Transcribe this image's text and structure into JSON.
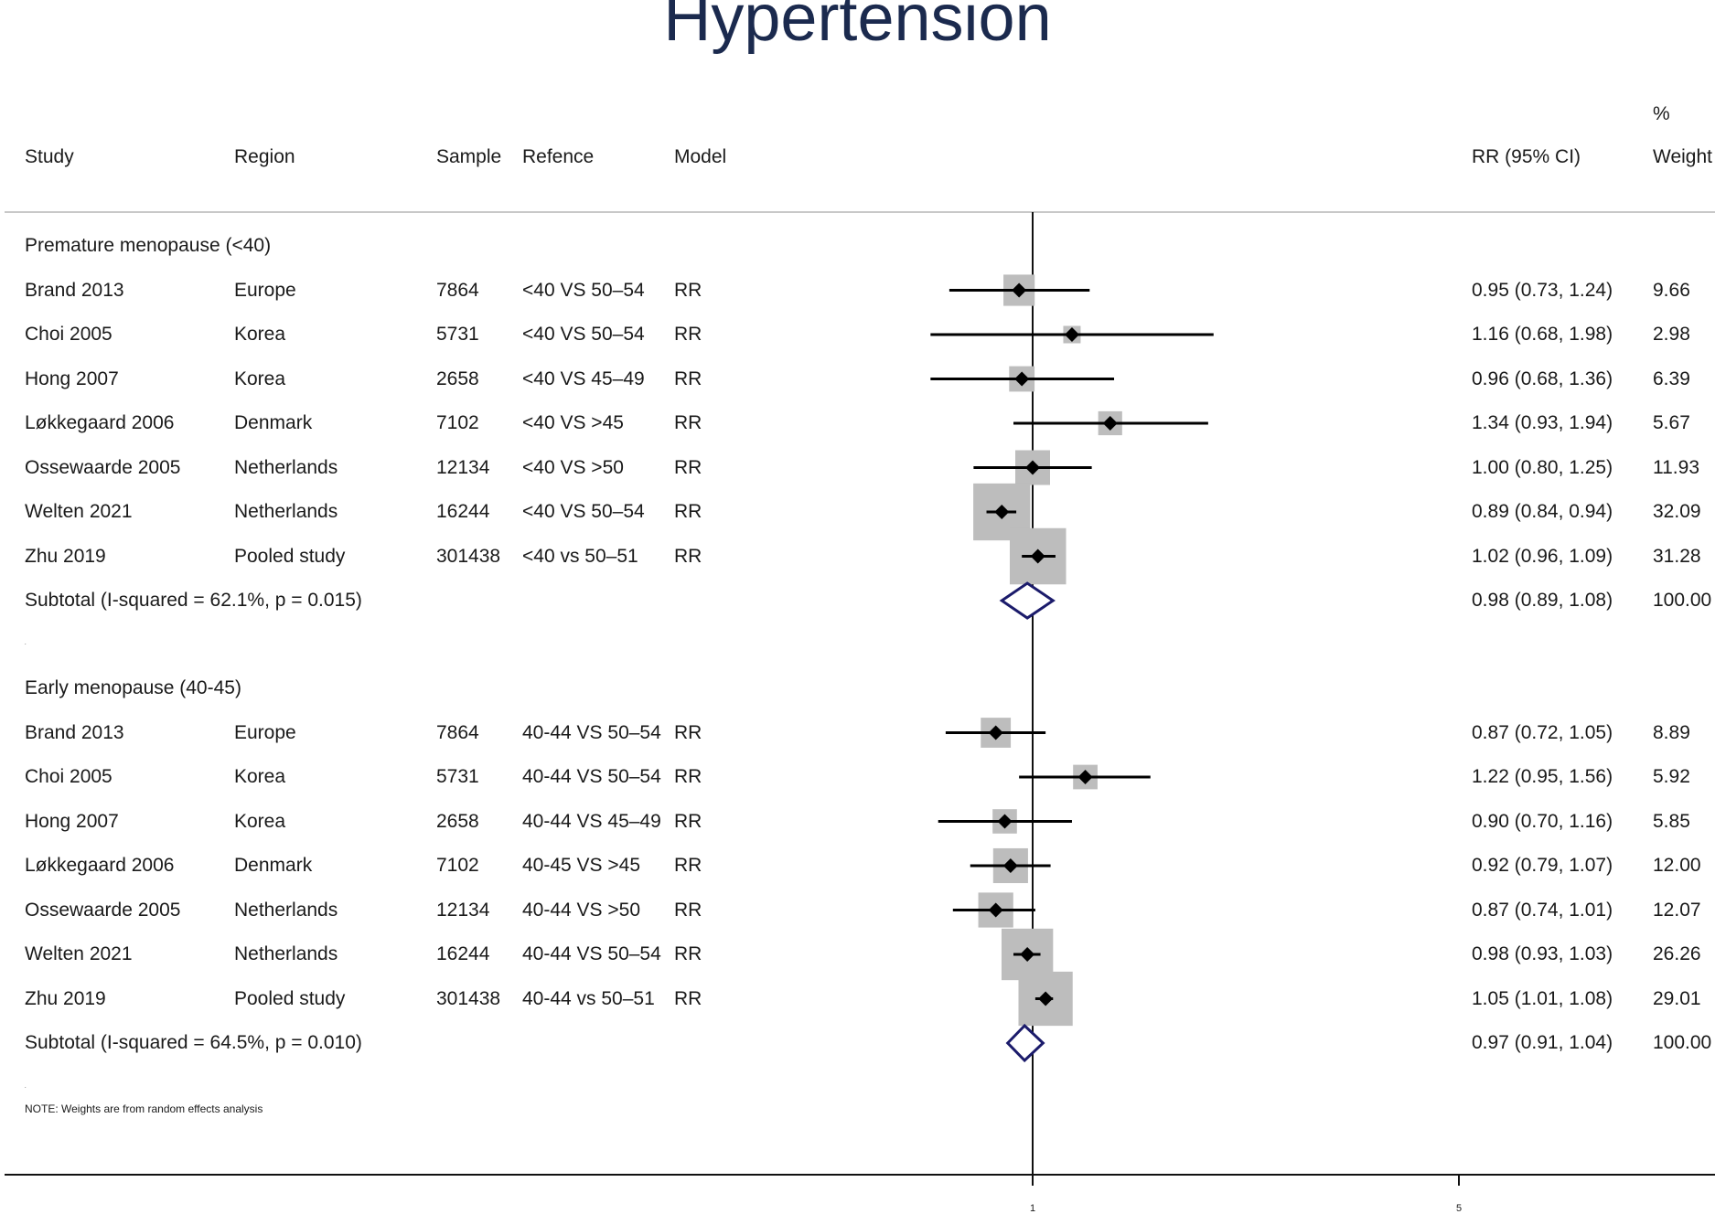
{
  "title": "Hypertension",
  "headers": {
    "study": "Study",
    "region": "Region",
    "sample": "Sample",
    "refence": "Refence",
    "model": "Model",
    "rr_ci": "RR (95% CI)",
    "weight_pct": "%",
    "weight": "Weight"
  },
  "note": "NOTE: Weights are from random effects analysis",
  "dot_marks": [
    ".",
    "."
  ],
  "colors": {
    "title": "#1b2a4e",
    "diamond": "#1b1b6b",
    "box": "#bdbdbd"
  },
  "chart_data": {
    "type": "forest",
    "measure": "RR",
    "null_value": 1,
    "x_ticks": [
      1,
      5
    ],
    "x_tick_labels": [
      "1",
      "5"
    ],
    "groups": [
      {
        "label": "Premature menopause (<40)",
        "rows": [
          {
            "study": "Brand 2013",
            "region": "Europe",
            "sample": "7864",
            "refence": "<40 VS 50–54",
            "model": "RR",
            "rr": 0.95,
            "lo": 0.73,
            "hi": 1.24,
            "ci_text": "0.95 (0.73, 1.24)",
            "weight": 9.66,
            "weight_text": "9.66"
          },
          {
            "study": "Choi 2005",
            "region": "Korea",
            "sample": "5731",
            "refence": "<40 VS 50–54",
            "model": "RR",
            "rr": 1.16,
            "lo": 0.68,
            "hi": 1.98,
            "ci_text": "1.16 (0.68, 1.98)",
            "weight": 2.98,
            "weight_text": "2.98"
          },
          {
            "study": "Hong 2007",
            "region": "Korea",
            "sample": "2658",
            "refence": "<40 VS 45–49",
            "model": "RR",
            "rr": 0.96,
            "lo": 0.68,
            "hi": 1.36,
            "ci_text": "0.96 (0.68, 1.36)",
            "weight": 6.39,
            "weight_text": "6.39"
          },
          {
            "study": "Løkkegaard 2006",
            "region": "Denmark",
            "sample": "7102",
            "refence": "<40 VS >45",
            "model": "RR",
            "rr": 1.34,
            "lo": 0.93,
            "hi": 1.94,
            "ci_text": "1.34 (0.93, 1.94)",
            "weight": 5.67,
            "weight_text": "5.67"
          },
          {
            "study": "Ossewaarde 2005",
            "region": "Netherlands",
            "sample": "12134",
            "refence": "<40 VS >50",
            "model": "RR",
            "rr": 1.0,
            "lo": 0.8,
            "hi": 1.25,
            "ci_text": "1.00 (0.80, 1.25)",
            "weight": 11.93,
            "weight_text": "11.93"
          },
          {
            "study": "Welten 2021",
            "region": "Netherlands",
            "sample": "16244",
            "refence": "<40 VS 50–54",
            "model": "RR",
            "rr": 0.89,
            "lo": 0.84,
            "hi": 0.94,
            "ci_text": "0.89 (0.84, 0.94)",
            "weight": 32.09,
            "weight_text": "32.09"
          },
          {
            "study": "Zhu 2019",
            "region": "Pooled study",
            "sample": "301438",
            "refence": "<40 vs 50–51",
            "model": "RR",
            "rr": 1.02,
            "lo": 0.96,
            "hi": 1.09,
            "ci_text": "1.02 (0.96, 1.09)",
            "weight": 31.28,
            "weight_text": "31.28"
          }
        ],
        "subtotal": {
          "label": "Subtotal  (I-squared = 62.1%, p = 0.015)",
          "rr": 0.98,
          "lo": 0.89,
          "hi": 1.08,
          "ci_text": "0.98 (0.89, 1.08)",
          "weight_text": "100.00"
        }
      },
      {
        "label": "Early menopause (40-45)",
        "rows": [
          {
            "study": "Brand 2013",
            "region": "Europe",
            "sample": "7864",
            "refence": "40-44 VS 50–54",
            "model": "RR",
            "rr": 0.87,
            "lo": 0.72,
            "hi": 1.05,
            "ci_text": "0.87 (0.72, 1.05)",
            "weight": 8.89,
            "weight_text": "8.89"
          },
          {
            "study": "Choi 2005",
            "region": "Korea",
            "sample": "5731",
            "refence": "40-44 VS 50–54",
            "model": "RR",
            "rr": 1.22,
            "lo": 0.95,
            "hi": 1.56,
            "ci_text": "1.22 (0.95, 1.56)",
            "weight": 5.92,
            "weight_text": "5.92"
          },
          {
            "study": "Hong 2007",
            "region": "Korea",
            "sample": "2658",
            "refence": "40-44 VS 45–49",
            "model": "RR",
            "rr": 0.9,
            "lo": 0.7,
            "hi": 1.16,
            "ci_text": "0.90 (0.70, 1.16)",
            "weight": 5.85,
            "weight_text": "5.85"
          },
          {
            "study": "Løkkegaard 2006",
            "region": "Denmark",
            "sample": "7102",
            "refence": "40-45 VS >45",
            "model": "RR",
            "rr": 0.92,
            "lo": 0.79,
            "hi": 1.07,
            "ci_text": "0.92 (0.79, 1.07)",
            "weight": 12.0,
            "weight_text": "12.00"
          },
          {
            "study": "Ossewaarde 2005",
            "region": "Netherlands",
            "sample": "12134",
            "refence": "40-44 VS >50",
            "model": "RR",
            "rr": 0.87,
            "lo": 0.74,
            "hi": 1.01,
            "ci_text": "0.87 (0.74, 1.01)",
            "weight": 12.07,
            "weight_text": "12.07"
          },
          {
            "study": "Welten 2021",
            "region": "Netherlands",
            "sample": "16244",
            "refence": "40-44 VS 50–54",
            "model": "RR",
            "rr": 0.98,
            "lo": 0.93,
            "hi": 1.03,
            "ci_text": "0.98 (0.93, 1.03)",
            "weight": 26.26,
            "weight_text": "26.26"
          },
          {
            "study": "Zhu 2019",
            "region": "Pooled study",
            "sample": "301438",
            "refence": "40-44 vs 50–51",
            "model": "RR",
            "rr": 1.05,
            "lo": 1.01,
            "hi": 1.08,
            "ci_text": "1.05 (1.01, 1.08)",
            "weight": 29.01,
            "weight_text": "29.01"
          }
        ],
        "subtotal": {
          "label": "Subtotal  (I-squared = 64.5%, p = 0.010)",
          "rr": 0.97,
          "lo": 0.91,
          "hi": 1.04,
          "ci_text": "0.97 (0.91, 1.04)",
          "weight_text": "100.00"
        }
      }
    ]
  }
}
